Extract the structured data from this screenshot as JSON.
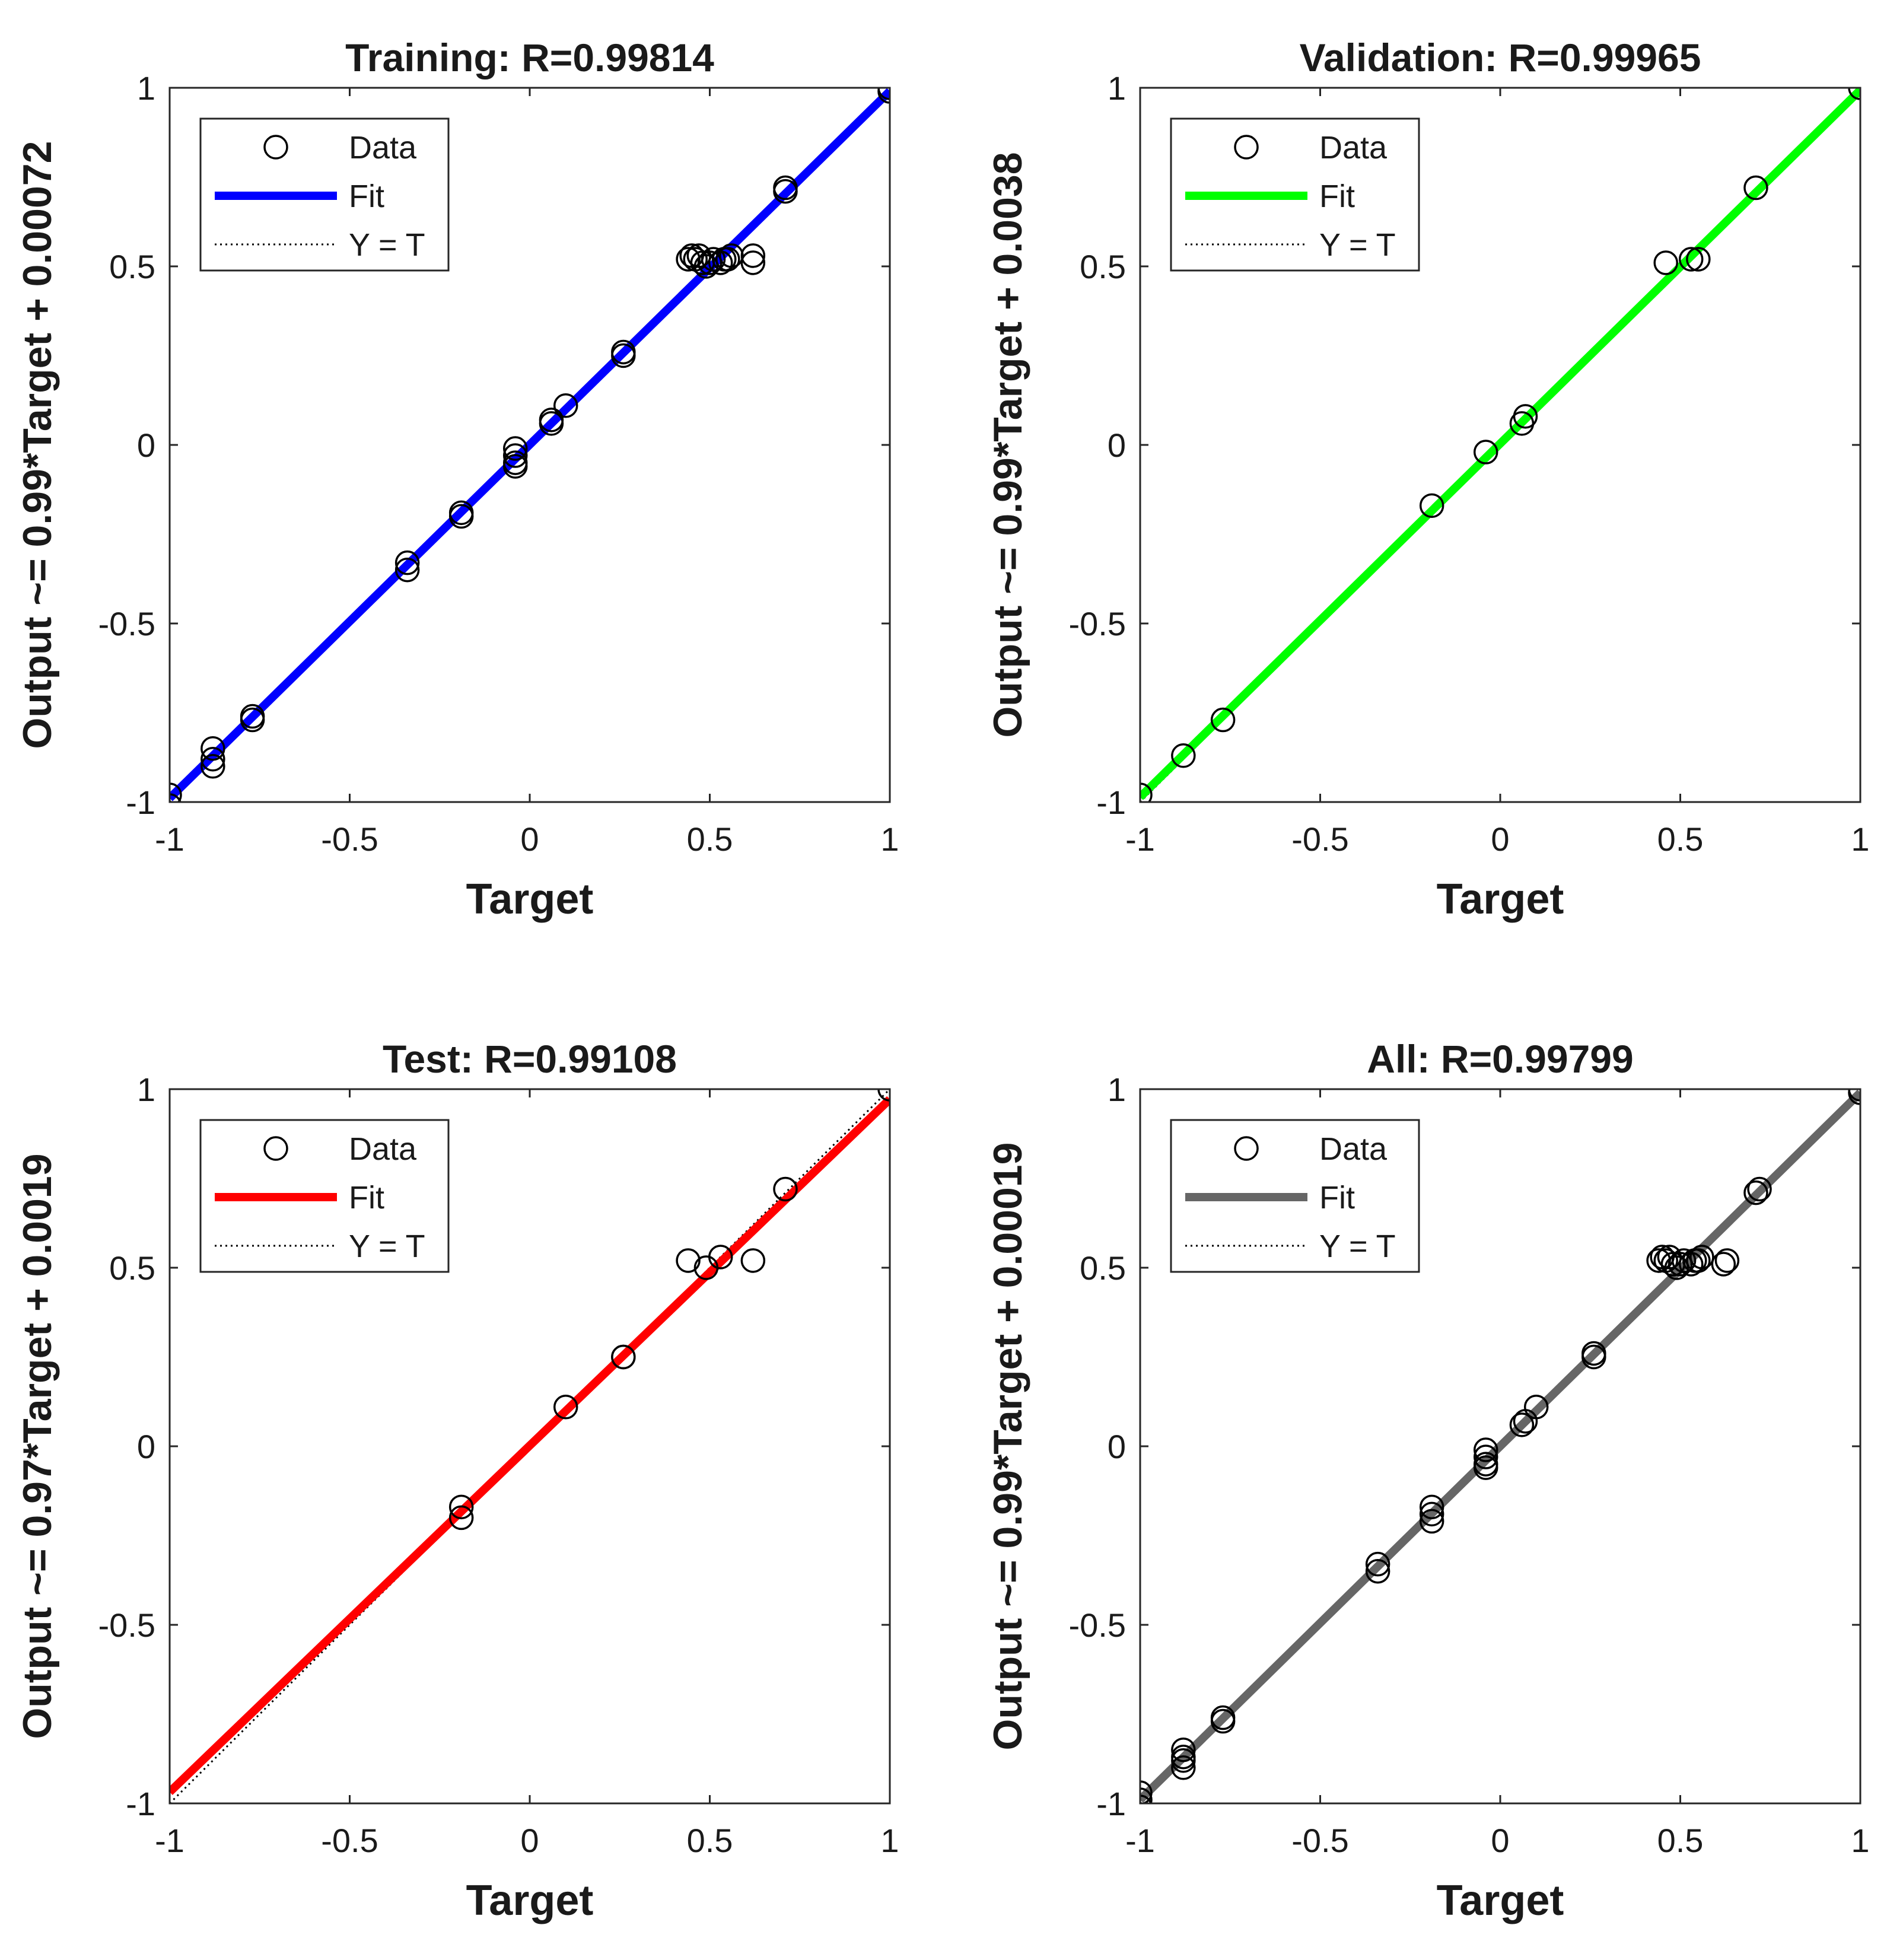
{
  "chart_data": [
    {
      "type": "scatter",
      "title": "Training: R=0.99814",
      "xlabel": "Target",
      "ylabel": "Output ~= 0.99*Target  + 0.00072",
      "xlim": [
        -1,
        1
      ],
      "ylim": [
        -1,
        1
      ],
      "xticks": [
        -1,
        -0.5,
        0,
        0.5,
        1
      ],
      "yticks": [
        -1,
        -0.5,
        0,
        0.5,
        1
      ],
      "xtick_labels": [
        "-1",
        "-0.5",
        "0",
        "0.5",
        "1"
      ],
      "ytick_labels": [
        "-1",
        "-0.5",
        "0",
        "0.5",
        "1"
      ],
      "grid": false,
      "legend_position": "top-left",
      "legend": [
        "Data",
        "Fit",
        "Y = T"
      ],
      "fit": {
        "slope": 0.99,
        "intercept": 0.00072,
        "color": "#0000ff"
      },
      "series": [
        {
          "name": "Data",
          "x": [
            -1,
            -1,
            -0.88,
            -0.88,
            -0.88,
            -0.77,
            -0.77,
            -0.34,
            -0.34,
            -0.19,
            -0.19,
            -0.04,
            -0.04,
            -0.04,
            -0.04,
            0.06,
            0.06,
            0.1,
            0.26,
            0.26,
            0.44,
            0.45,
            0.46,
            0.47,
            0.48,
            0.49,
            0.5,
            0.51,
            0.53,
            0.54,
            0.55,
            0.56,
            0.62,
            0.62,
            0.71,
            0.71,
            1,
            1
          ],
          "y": [
            -0.98,
            -1.01,
            -0.85,
            -0.88,
            -0.9,
            -0.76,
            -0.77,
            -0.33,
            -0.35,
            -0.19,
            -0.2,
            -0.01,
            -0.03,
            -0.05,
            -0.06,
            0.06,
            0.07,
            0.11,
            0.26,
            0.25,
            0.52,
            0.53,
            0.52,
            0.53,
            0.51,
            0.5,
            0.51,
            0.52,
            0.51,
            0.52,
            0.52,
            0.53,
            0.51,
            0.53,
            0.71,
            0.72,
            1,
            0.99
          ]
        }
      ]
    },
    {
      "type": "scatter",
      "title": "Validation:  R=0.99965",
      "xlabel": "Target",
      "ylabel": "Output ~= 0.99*Target  + 0.0038",
      "xlim": [
        -1,
        1
      ],
      "ylim": [
        -1,
        1
      ],
      "xticks": [
        -1,
        -0.5,
        0,
        0.5,
        1
      ],
      "yticks": [
        -1,
        -0.5,
        0,
        0.5,
        1
      ],
      "xtick_labels": [
        "-1",
        "-0.5",
        "0",
        "0.5",
        "1"
      ],
      "ytick_labels": [
        "-1",
        "-0.5",
        "0",
        "0.5",
        "1"
      ],
      "grid": false,
      "legend_position": "top-left",
      "legend": [
        "Data",
        "Fit",
        "Y = T"
      ],
      "fit": {
        "slope": 0.99,
        "intercept": 0.0038,
        "color": "#00ff00"
      },
      "series": [
        {
          "name": "Data",
          "x": [
            -1,
            -0.88,
            -0.77,
            -0.19,
            -0.04,
            0.06,
            0.07,
            0.46,
            0.53,
            0.55,
            0.71,
            1
          ],
          "y": [
            -0.98,
            -0.87,
            -0.77,
            -0.17,
            -0.02,
            0.06,
            0.08,
            0.51,
            0.52,
            0.52,
            0.72,
            1
          ]
        }
      ]
    },
    {
      "type": "scatter",
      "title": "Test: R=0.99108",
      "xlabel": "Target",
      "ylabel": "Output ~= 0.97*Target  + 0.0019",
      "xlim": [
        -1,
        1
      ],
      "ylim": [
        -1,
        1
      ],
      "xticks": [
        -1,
        -0.5,
        0,
        0.5,
        1
      ],
      "yticks": [
        -1,
        -0.5,
        0,
        0.5,
        1
      ],
      "xtick_labels": [
        "-1",
        "-0.5",
        "0",
        "0.5",
        "1"
      ],
      "ytick_labels": [
        "-1",
        "-0.5",
        "0",
        "0.5",
        "1"
      ],
      "grid": false,
      "legend_position": "top-left",
      "legend": [
        "Data",
        "Fit",
        "Y = T"
      ],
      "fit": {
        "slope": 0.97,
        "intercept": 0.0019,
        "color": "#ff0000"
      },
      "series": [
        {
          "name": "Data",
          "x": [
            -0.19,
            -0.19,
            0.1,
            0.26,
            0.26,
            0.44,
            0.49,
            0.53,
            0.62,
            0.71,
            1
          ],
          "y": [
            -0.17,
            -0.2,
            0.11,
            0.25,
            0.25,
            0.52,
            0.5,
            0.53,
            0.52,
            0.72,
            1
          ]
        }
      ]
    },
    {
      "type": "scatter",
      "title": "All: R=0.99799",
      "xlabel": "Target",
      "ylabel": "Output ~= 0.99*Target  + 0.00019",
      "xlim": [
        -1,
        1
      ],
      "ylim": [
        -1,
        1
      ],
      "xticks": [
        -1,
        -0.5,
        0,
        0.5,
        1
      ],
      "yticks": [
        -1,
        -0.5,
        0,
        0.5,
        1
      ],
      "xtick_labels": [
        "-1",
        "-0.5",
        "0",
        "0.5",
        "1"
      ],
      "ytick_labels": [
        "-1",
        "-0.5",
        "0",
        "0.5",
        "1"
      ],
      "grid": false,
      "legend_position": "top-left",
      "legend": [
        "Data",
        "Fit",
        "Y = T"
      ],
      "fit": {
        "slope": 0.99,
        "intercept": 0.00019,
        "color": "#666666"
      },
      "series": [
        {
          "name": "Data",
          "x": [
            -1,
            -1,
            -1,
            -0.88,
            -0.88,
            -0.88,
            -0.88,
            -0.77,
            -0.77,
            -0.34,
            -0.34,
            -0.19,
            -0.19,
            -0.19,
            -0.04,
            -0.04,
            -0.04,
            -0.04,
            0.06,
            0.07,
            0.1,
            0.26,
            0.26,
            0.44,
            0.45,
            0.46,
            0.47,
            0.48,
            0.49,
            0.5,
            0.51,
            0.53,
            0.54,
            0.55,
            0.56,
            0.62,
            0.63,
            0.71,
            0.72,
            1,
            1
          ],
          "y": [
            -0.97,
            -0.99,
            -1.01,
            -0.85,
            -0.87,
            -0.88,
            -0.9,
            -0.76,
            -0.77,
            -0.33,
            -0.35,
            -0.17,
            -0.19,
            -0.21,
            -0.01,
            -0.03,
            -0.05,
            -0.06,
            0.06,
            0.07,
            0.11,
            0.26,
            0.25,
            0.52,
            0.53,
            0.52,
            0.53,
            0.51,
            0.5,
            0.51,
            0.52,
            0.51,
            0.52,
            0.52,
            0.53,
            0.51,
            0.52,
            0.71,
            0.72,
            1,
            0.99
          ]
        }
      ]
    }
  ]
}
